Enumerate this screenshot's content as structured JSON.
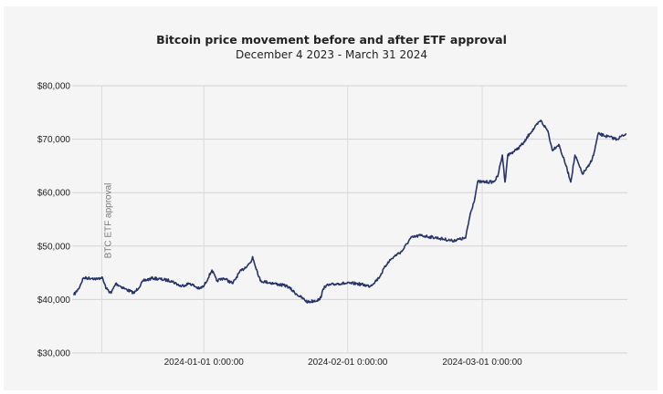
{
  "chart_data": {
    "type": "line",
    "title": "Bitcoin price movement before and after ETF approval",
    "subtitle": "December 4 2023 - March 31 2024",
    "xlabel": "",
    "ylabel": "",
    "xlim": [
      "2023-12-04",
      "2024-04-01"
    ],
    "ylim": [
      30000,
      80000
    ],
    "yticks": [
      30000,
      40000,
      50000,
      60000,
      70000,
      80000
    ],
    "ytick_labels": [
      "$30,000",
      "$40,000",
      "$50,000",
      "$60,000",
      "$70,000",
      "$80,000"
    ],
    "xticks": [
      "2024-01-01",
      "2024-02-01",
      "2024-03-01"
    ],
    "xtick_labels": [
      "2024-01-01 0:00:00",
      "2024-02-01 0:00:00",
      "2024-03-01 0:00:00"
    ],
    "grid": true,
    "legend": "none",
    "line_color": "#27346a",
    "annotation": {
      "date": "2023-12-10",
      "label": "BTC ETF approval",
      "color": "#777777"
    },
    "series": [
      {
        "x": [
          "2023-12-04T00",
          "2023-12-05T00",
          "2023-12-06T00",
          "2023-12-08T00",
          "2023-12-09T00",
          "2023-12-10T00",
          "2023-12-11T00",
          "2023-12-12T00",
          "2023-12-13T00",
          "2023-12-15T00",
          "2023-12-17T00",
          "2023-12-19T00",
          "2023-12-21T00",
          "2023-12-25T00",
          "2023-12-27T00",
          "2023-12-29T00",
          "2023-12-31T00",
          "2024-01-01T00",
          "2024-01-02T18",
          "2024-01-03T18",
          "2024-01-05T06",
          "2024-01-07T06",
          "2024-01-08T14",
          "2024-01-11T04",
          "2024-01-11T12",
          "2024-01-13T04",
          "2024-01-16T02",
          "2024-01-19T00",
          "2024-01-21T00",
          "2024-01-23T10",
          "2024-01-26T00",
          "2024-01-27T00",
          "2024-01-30T00",
          "2024-02-02T20",
          "2024-02-05T20",
          "2024-02-07T16",
          "2024-02-09T16",
          "2024-02-11T16",
          "2024-02-12T16",
          "2024-02-14T14",
          "2024-02-16T14",
          "2024-02-20T12",
          "2024-02-23T12",
          "2024-02-26T10",
          "2024-02-27T10",
          "2024-02-28T10",
          "2024-02-29T00",
          "2024-03-03T10",
          "2024-03-04T08",
          "2024-03-05T08",
          "2024-03-05T22",
          "2024-03-06T12",
          "2024-03-08T08",
          "2024-03-10T04",
          "2024-03-11T04",
          "2024-03-12T04",
          "2024-03-13T14",
          "2024-03-15T04",
          "2024-03-16T02",
          "2024-03-17T12",
          "2024-03-19T02",
          "2024-03-20T02",
          "2024-03-21T00",
          "2024-03-22T14",
          "2024-03-24T00",
          "2024-03-25T00",
          "2024-03-26T00",
          "2024-03-28T00",
          "2024-03-30T00",
          "2024-03-31T23"
        ],
        "y": [
          40900,
          42000,
          44000,
          44000,
          43800,
          44200,
          42000,
          41200,
          43000,
          42000,
          41200,
          43500,
          44000,
          43500,
          42500,
          43000,
          42000,
          42500,
          45500,
          43500,
          44000,
          43000,
          45000,
          47000,
          48000,
          43500,
          43000,
          42500,
          41000,
          39500,
          40000,
          42500,
          43000,
          43000,
          42500,
          44000,
          47000,
          48500,
          49000,
          51500,
          52000,
          51500,
          51000,
          51500,
          56000,
          59000,
          62000,
          62000,
          63000,
          67000,
          62000,
          67000,
          68000,
          69500,
          71000,
          72000,
          73500,
          71500,
          68000,
          69000,
          65000,
          62000,
          67000,
          63500,
          65000,
          67000,
          71000,
          70500,
          70000,
          71000
        ]
      }
    ]
  }
}
